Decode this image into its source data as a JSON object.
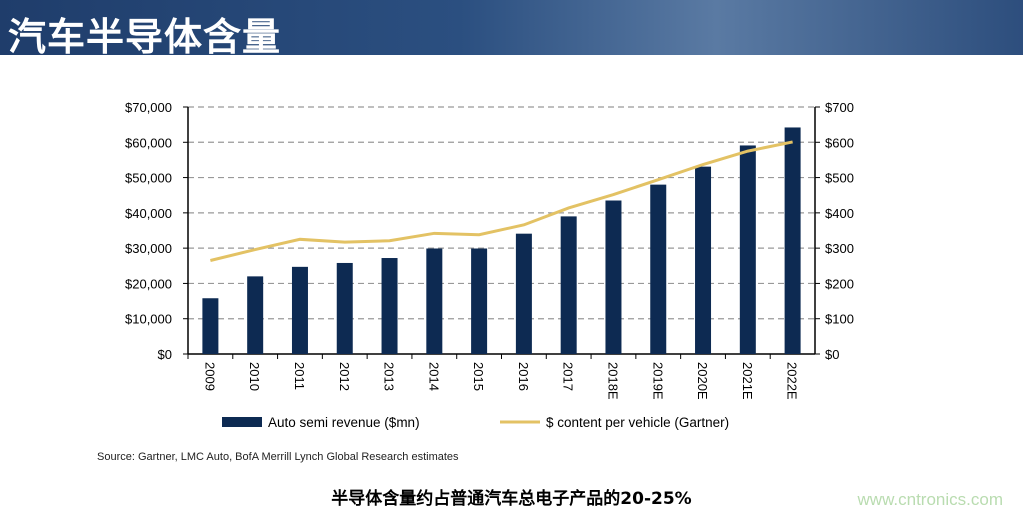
{
  "header": {
    "title": "汽车半导体含量"
  },
  "chart_data": {
    "type": "bar+line",
    "categories": [
      "2009",
      "2010",
      "2011",
      "2012",
      "2013",
      "2014",
      "2015",
      "2016",
      "2017",
      "2018E",
      "2019E",
      "2020E",
      "2021E",
      "2022E"
    ],
    "series": [
      {
        "name": "Auto semi revenue ($mn)",
        "type": "bar",
        "axis": "left",
        "color": "#0d2a52",
        "values": [
          15800,
          22000,
          24700,
          25800,
          27200,
          29900,
          29900,
          34100,
          39000,
          43500,
          48000,
          53100,
          59100,
          64200
        ]
      },
      {
        "name": "$ content per vehicle (Gartner)",
        "type": "line",
        "axis": "right",
        "color": "#e3c264",
        "values": [
          265,
          296,
          325,
          317,
          321,
          342,
          338,
          366,
          414,
          452,
          494,
          537,
          575,
          601
        ]
      }
    ],
    "left_axis": {
      "ylim": [
        0,
        70000
      ],
      "ticks": [
        "$0",
        "$10,000",
        "$20,000",
        "$30,000",
        "$40,000",
        "$50,000",
        "$60,000",
        "$70,000"
      ]
    },
    "right_axis": {
      "ylim": [
        0,
        700
      ],
      "ticks": [
        "$0",
        "$100",
        "$200",
        "$300",
        "$400",
        "$500",
        "$600",
        "$700"
      ]
    },
    "grid": "horizontal dashed",
    "legend": "bottom"
  },
  "source": "Source: Gartner, LMC Auto, BofA Merrill Lynch Global Research estimates",
  "caption": "半导体含量约占普通汽车总电子产品的20-25%",
  "watermark": "www.cntronics.com"
}
